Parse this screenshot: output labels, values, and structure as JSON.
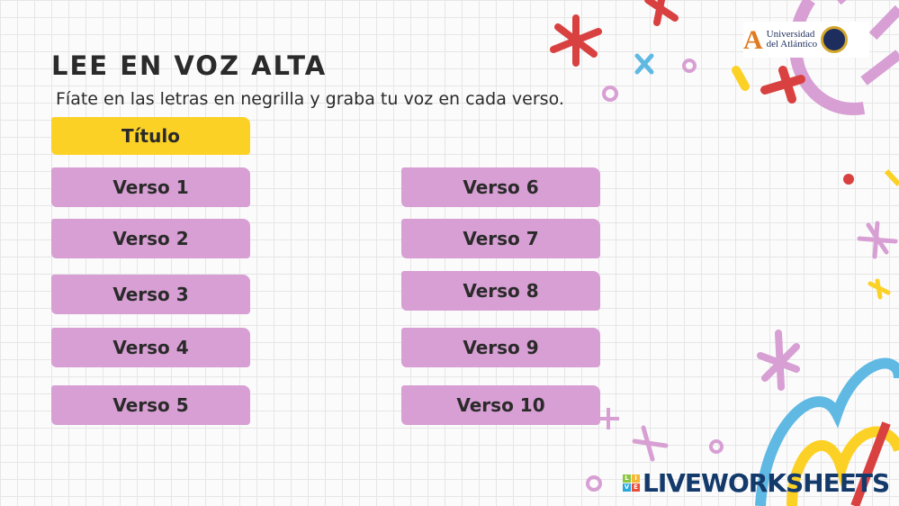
{
  "header": {
    "title": "LEE EN VOZ ALTA",
    "instruction": "Fíate en las letras en negrilla y graba tu voz en cada verso."
  },
  "title_button": "Título",
  "verses_left": [
    "Verso 1",
    "Verso 2",
    "Verso 3",
    "Verso 4",
    "Verso 5"
  ],
  "verses_right": [
    "Verso 6",
    "Verso 7",
    "Verso 8",
    "Verso 9",
    "Verso 10"
  ],
  "logo": {
    "line1": "Universidad",
    "line2": "del Atlántico"
  },
  "brand": {
    "text": "LIVEWORKSHEETS",
    "cube": [
      "L",
      "I",
      "V",
      "E"
    ]
  },
  "colors": {
    "title": "#fcd126",
    "verse": "#d79fd3",
    "brand": "#133a6b"
  }
}
